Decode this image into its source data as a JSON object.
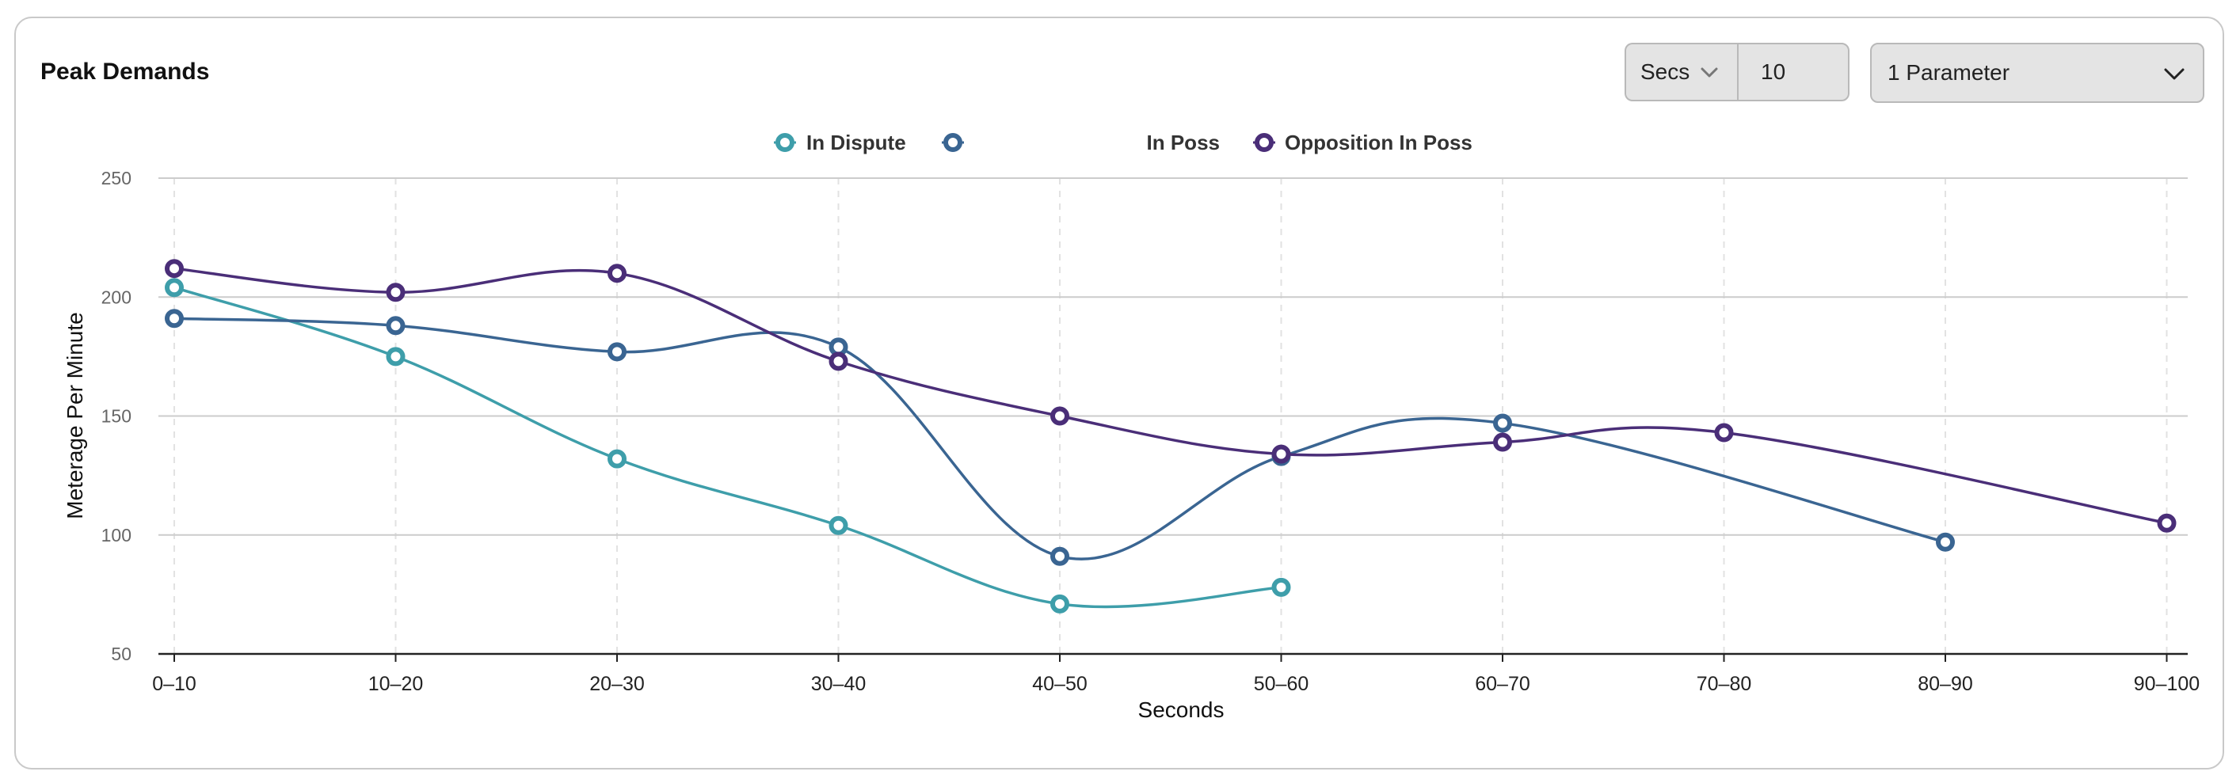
{
  "panel": {
    "title": "Peak Demands"
  },
  "controls": {
    "unit_selected": "Secs",
    "interval_value": "10",
    "parameter_selected": "1 Parameter"
  },
  "colors": {
    "in_dispute": "#3E9EAA",
    "in_poss": "#3A6592",
    "opposition_in_poss": "#4A2E78",
    "grid": "#cccccc",
    "grid_v": "#e2e2e2",
    "axis": "#222222"
  },
  "chart_data": {
    "type": "line",
    "title": "Peak Demands",
    "xlabel": "Seconds",
    "ylabel": "Meterage Per Minute",
    "ylim": [
      50,
      250
    ],
    "yticks": [
      50,
      100,
      150,
      200,
      250
    ],
    "categories": [
      "0–10",
      "10–20",
      "20–30",
      "30–40",
      "40–50",
      "50–60",
      "60–70",
      "70–80",
      "80–90",
      "90–100"
    ],
    "legend_position": "top-center",
    "grid": true,
    "series": [
      {
        "name": "In Dispute",
        "color": "#3E9EAA",
        "values": [
          204,
          175,
          132,
          104,
          71,
          78,
          null,
          null,
          null,
          null
        ]
      },
      {
        "name": "In Poss",
        "color": "#3A6592",
        "values": [
          191,
          188,
          177,
          179,
          91,
          133,
          147,
          null,
          97,
          null
        ]
      },
      {
        "name": "Opposition In Poss",
        "color": "#4A2E78",
        "values": [
          212,
          202,
          210,
          173,
          150,
          134,
          139,
          143,
          null,
          105
        ]
      }
    ]
  }
}
